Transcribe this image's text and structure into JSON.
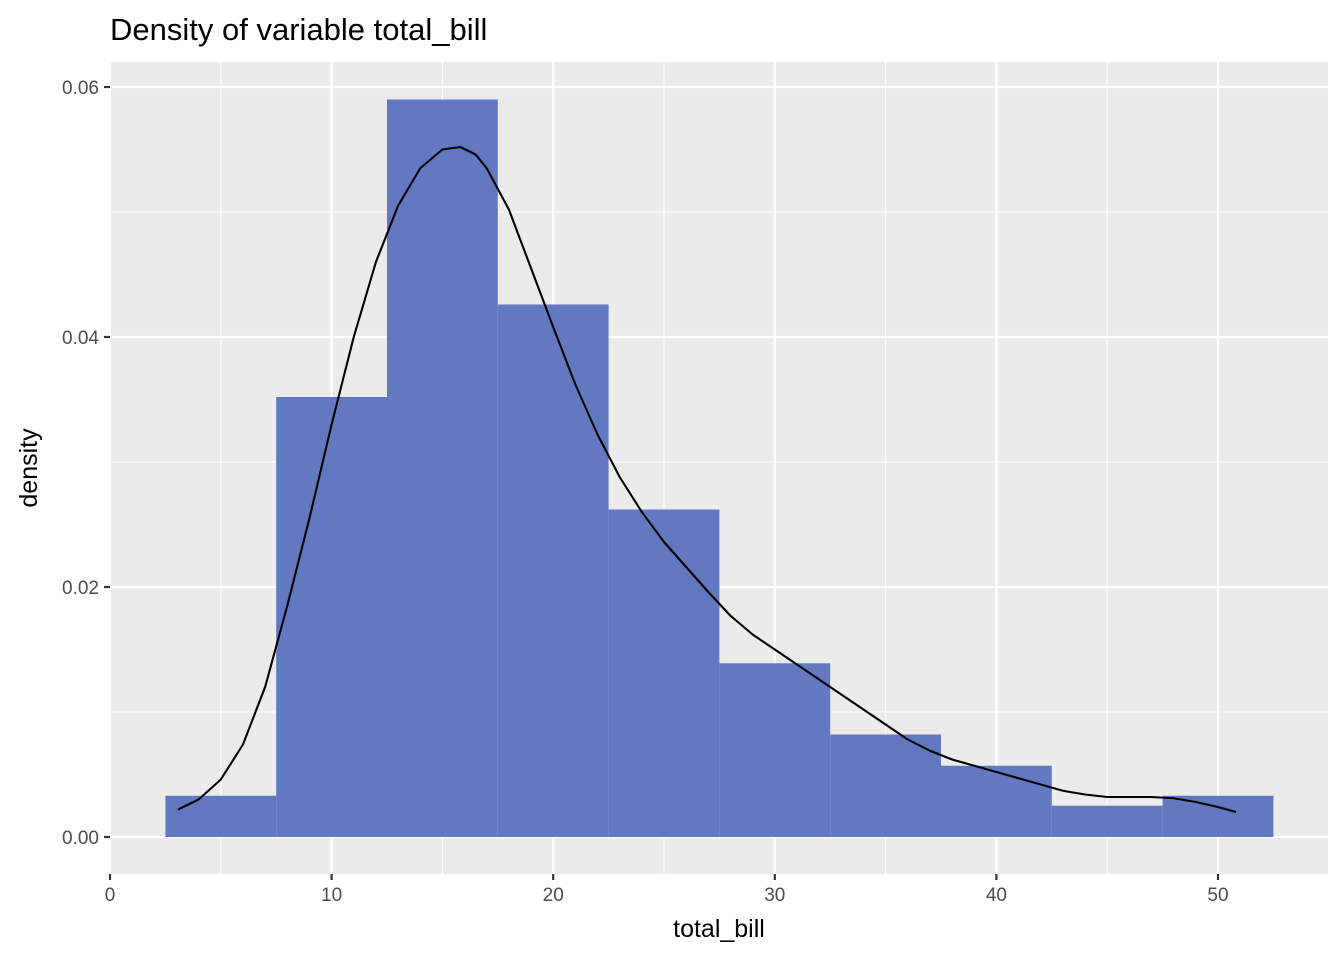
{
  "chart_data": {
    "type": "bar",
    "title": "Density of variable total_bill",
    "xlabel": "total_bill",
    "ylabel": "density",
    "xlim": [
      0,
      50
    ],
    "ylim": [
      0,
      0.06
    ],
    "x_ticks": [
      0,
      10,
      20,
      30,
      40,
      50
    ],
    "x_tick_labels": [
      "0",
      "10",
      "20",
      "30",
      "40",
      "50"
    ],
    "y_ticks": [
      0,
      0.02,
      0.04,
      0.06
    ],
    "y_tick_labels": [
      "0.00",
      "0.02",
      "0.04",
      "0.06"
    ],
    "grid": true,
    "panel_background": "#EBEBEB",
    "bar_color": "#6279C2",
    "line_color": "#000000",
    "histogram": {
      "bin_edges": [
        2.5,
        7.5,
        12.5,
        17.5,
        22.5,
        27.5,
        32.5,
        37.5,
        42.5,
        47.5,
        52.5
      ],
      "density": [
        0.0033,
        0.0352,
        0.059,
        0.0426,
        0.0262,
        0.0139,
        0.0082,
        0.0057,
        0.0025,
        0.0033
      ]
    },
    "density_curve": {
      "x": [
        3.07,
        4,
        5,
        6,
        7,
        8,
        9,
        10,
        11,
        12,
        13,
        14,
        15,
        15.8,
        16.5,
        17,
        18,
        19,
        20,
        21,
        22,
        23,
        24,
        25,
        26,
        27,
        28,
        29,
        30,
        31,
        32,
        33,
        34,
        35,
        36,
        37,
        38,
        39,
        40,
        41,
        42,
        43,
        44,
        45,
        46,
        47,
        48,
        49,
        50,
        50.81
      ],
      "y": [
        0.0022,
        0.003,
        0.0046,
        0.0074,
        0.012,
        0.0185,
        0.0255,
        0.033,
        0.04,
        0.046,
        0.0505,
        0.0535,
        0.055,
        0.0552,
        0.0546,
        0.0535,
        0.0502,
        0.0455,
        0.0408,
        0.0362,
        0.0322,
        0.0288,
        0.026,
        0.0236,
        0.0216,
        0.0196,
        0.0177,
        0.0162,
        0.015,
        0.0138,
        0.0126,
        0.0114,
        0.0102,
        0.009,
        0.0078,
        0.0069,
        0.0062,
        0.0057,
        0.0052,
        0.0047,
        0.0042,
        0.0037,
        0.0034,
        0.0032,
        0.0032,
        0.0032,
        0.0031,
        0.0028,
        0.0024,
        0.002
      ]
    }
  }
}
